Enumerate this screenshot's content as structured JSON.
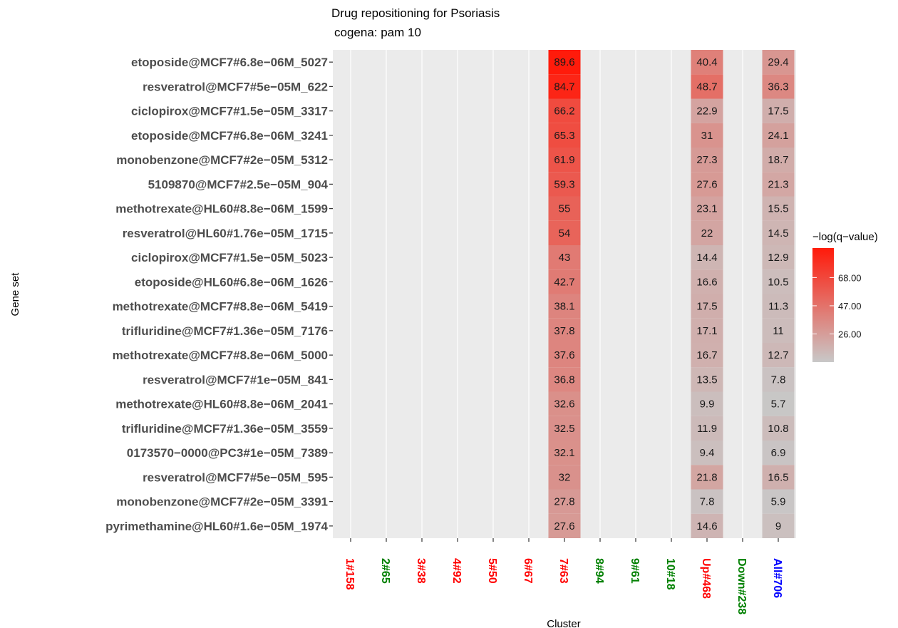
{
  "chart_data": {
    "type": "heatmap",
    "title": "Drug repositioning for Psoriasis",
    "subtitle": "cogena: pam 10",
    "xlabel": "Cluster",
    "ylabel": "Gene set",
    "legend": {
      "title": "−log(q−value)",
      "ticks": [
        "68.00",
        "47.00",
        "26.00"
      ],
      "tick_values": [
        68,
        47,
        26
      ],
      "min": 5,
      "max": 90,
      "color_low": "#c8c8c8",
      "color_high": "#ff1a0a",
      "placement": "right"
    },
    "clusters": [
      {
        "label": "1#158",
        "color": "#ff0000"
      },
      {
        "label": "2#65",
        "color": "#008000"
      },
      {
        "label": "3#38",
        "color": "#ff0000"
      },
      {
        "label": "4#92",
        "color": "#ff0000"
      },
      {
        "label": "5#50",
        "color": "#ff0000"
      },
      {
        "label": "6#67",
        "color": "#ff0000"
      },
      {
        "label": "7#63",
        "color": "#ff0000"
      },
      {
        "label": "8#94",
        "color": "#008000"
      },
      {
        "label": "9#61",
        "color": "#008000"
      },
      {
        "label": "10#18",
        "color": "#008000"
      },
      {
        "label": "Up#468",
        "color": "#ff0000"
      },
      {
        "label": "Down#238",
        "color": "#008000"
      },
      {
        "label": "All#706",
        "color": "#0000ff"
      }
    ],
    "gene_sets": [
      "etoposide@MCF7#6.8e−06M_5027",
      "resveratrol@MCF7#5e−05M_622",
      "ciclopirox@MCF7#1.5e−05M_3317",
      "etoposide@MCF7#6.8e−06M_3241",
      "monobenzone@MCF7#2e−05M_5312",
      "5109870@MCF7#2.5e−05M_904",
      "methotrexate@HL60#8.8e−06M_1599",
      "resveratrol@HL60#1.76e−05M_1715",
      "ciclopirox@MCF7#1.5e−05M_5023",
      "etoposide@HL60#6.8e−06M_1626",
      "methotrexate@MCF7#8.8e−06M_5419",
      "trifluridine@MCF7#1.36e−05M_7176",
      "methotrexate@MCF7#8.8e−06M_5000",
      "resveratrol@MCF7#1e−05M_841",
      "methotrexate@HL60#8.8e−06M_2041",
      "trifluridine@MCF7#1.36e−05M_3559",
      "0173570−0000@PC3#1e−05M_7389",
      "resveratrol@MCF7#5e−05M_595",
      "monobenzone@MCF7#2e−05M_3391",
      "pyrimethamine@HL60#1.6e−05M_1974"
    ],
    "series": [
      {
        "cluster": "7#63",
        "values": [
          89.6,
          84.7,
          66.2,
          65.3,
          61.9,
          59.3,
          55,
          54,
          43,
          42.7,
          38.1,
          37.8,
          37.6,
          36.8,
          32.6,
          32.5,
          32.1,
          32,
          27.8,
          27.6
        ]
      },
      {
        "cluster": "Up#468",
        "values": [
          40.4,
          48.7,
          22.9,
          31,
          27.3,
          27.6,
          23.1,
          22,
          14.4,
          16.6,
          17.5,
          17.1,
          16.7,
          13.5,
          9.9,
          11.9,
          9.4,
          21.8,
          7.8,
          14.6
        ]
      },
      {
        "cluster": "All#706",
        "values": [
          29.4,
          36.3,
          17.5,
          24.1,
          18.7,
          21.3,
          15.5,
          14.5,
          12.9,
          10.5,
          11.3,
          11,
          12.7,
          7.8,
          5.7,
          10.8,
          6.9,
          16.5,
          5.9,
          9
        ]
      }
    ],
    "grid": true,
    "panel_background": "#ebebeb"
  }
}
